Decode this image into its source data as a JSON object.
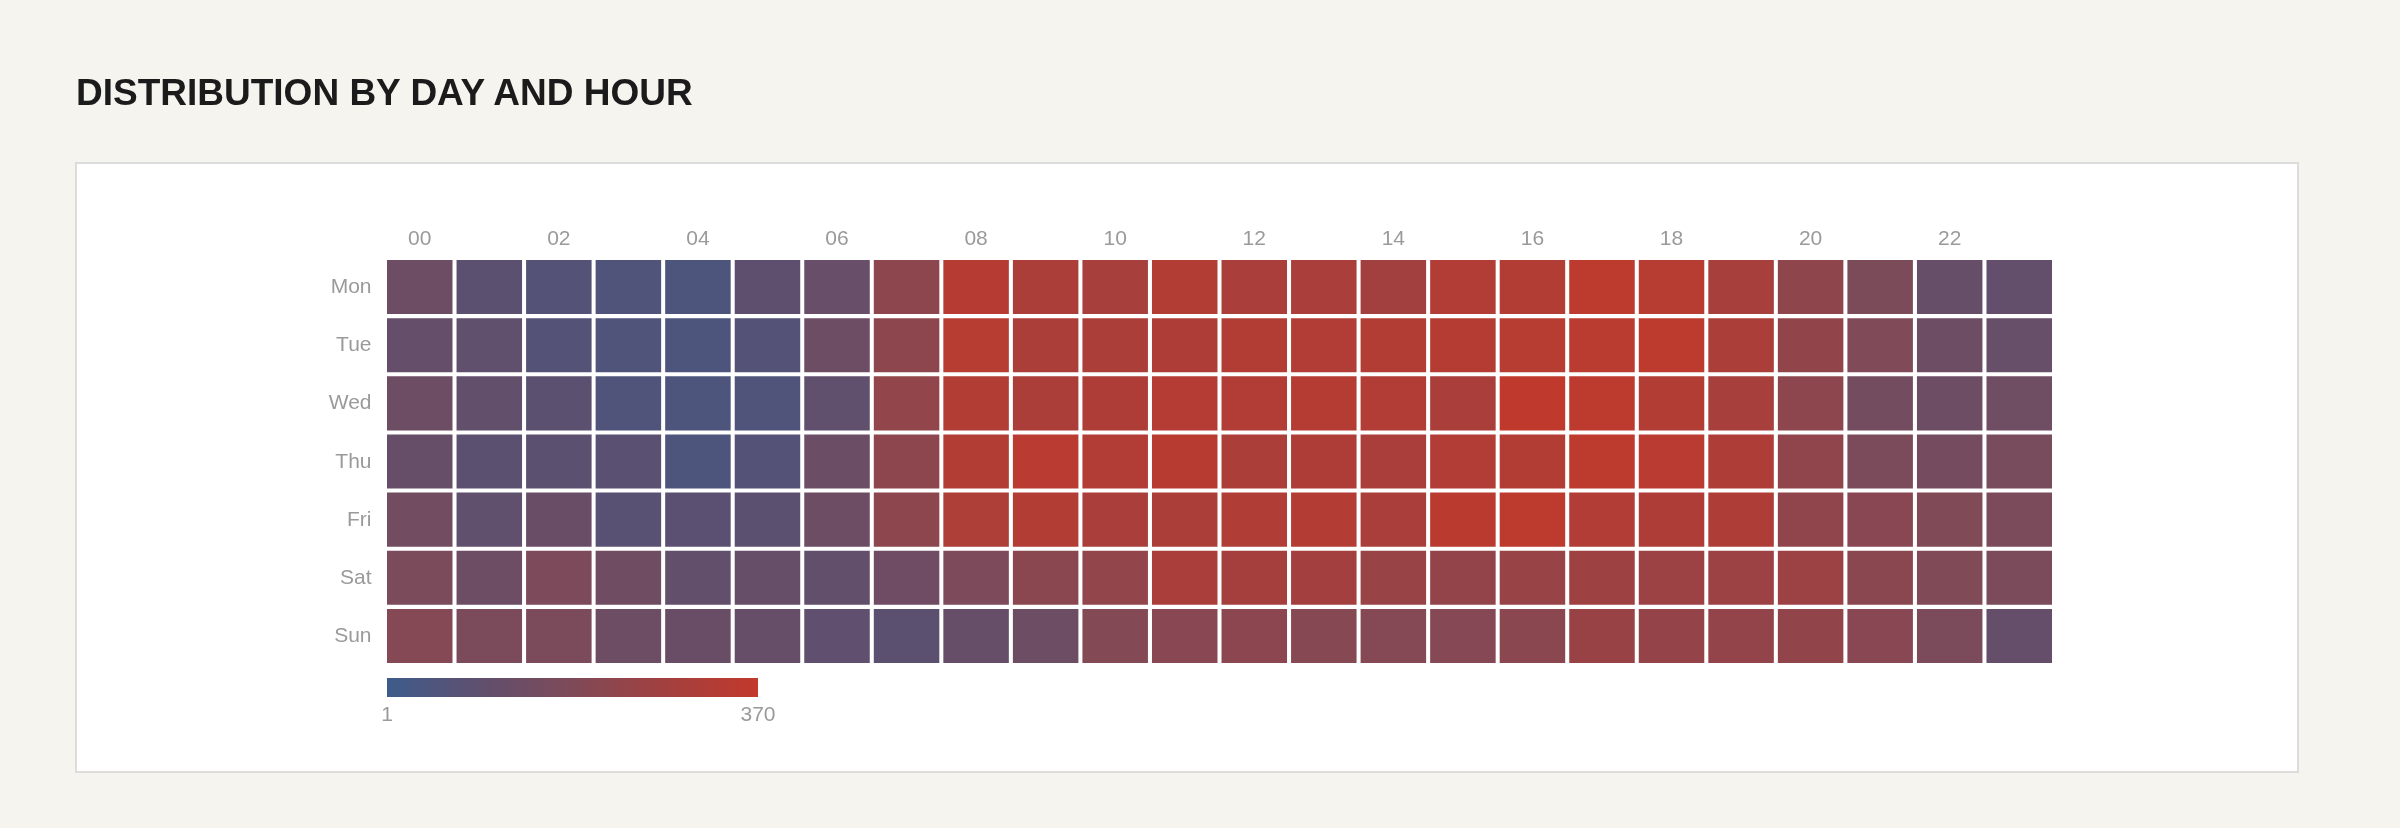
{
  "chart_data": {
    "type": "heatmap",
    "title": "DISTRIBUTION BY DAY AND HOUR",
    "categories": [
      "00",
      null,
      "02",
      null,
      "04",
      null,
      "06",
      null,
      "08",
      null,
      "10",
      null,
      "12",
      null,
      "14",
      null,
      "16",
      null,
      "18",
      null,
      "20",
      null,
      "22",
      null
    ],
    "y_categories": [
      "Mon",
      "Tue",
      "Wed",
      "Thu",
      "Fri",
      "Sat",
      "Sun"
    ],
    "cells": [
      [
        135,
        86,
        64,
        53,
        47,
        91,
        119,
        222,
        334,
        307,
        293,
        323,
        302,
        299,
        277,
        321,
        323,
        354,
        337,
        293,
        228,
        176,
        113,
        105
      ],
      [
        110,
        97,
        64,
        53,
        45,
        64,
        135,
        222,
        337,
        307,
        304,
        315,
        323,
        321,
        323,
        332,
        337,
        348,
        354,
        304,
        233,
        187,
        135,
        116
      ],
      [
        135,
        102,
        86,
        53,
        45,
        53,
        97,
        236,
        323,
        307,
        313,
        329,
        321,
        332,
        321,
        302,
        362,
        356,
        323,
        293,
        222,
        154,
        135,
        138
      ],
      [
        113,
        86,
        86,
        80,
        45,
        64,
        129,
        222,
        323,
        343,
        321,
        340,
        307,
        313,
        299,
        321,
        323,
        354,
        343,
        315,
        231,
        173,
        157,
        165
      ],
      [
        149,
        97,
        121,
        75,
        83,
        86,
        135,
        222,
        310,
        323,
        299,
        307,
        318,
        326,
        302,
        351,
        354,
        321,
        315,
        313,
        231,
        209,
        190,
        173
      ],
      [
        173,
        135,
        178,
        143,
        102,
        113,
        102,
        140,
        178,
        214,
        236,
        299,
        285,
        280,
        252,
        239,
        252,
        266,
        261,
        261,
        261,
        217,
        190,
        173
      ],
      [
        198,
        173,
        173,
        135,
        121,
        113,
        95,
        86,
        113,
        135,
        195,
        209,
        220,
        203,
        198,
        201,
        217,
        255,
        242,
        239,
        233,
        209,
        173,
        110
      ]
    ],
    "clim": [
      1,
      370
    ],
    "cticks": [
      1,
      370
    ]
  }
}
